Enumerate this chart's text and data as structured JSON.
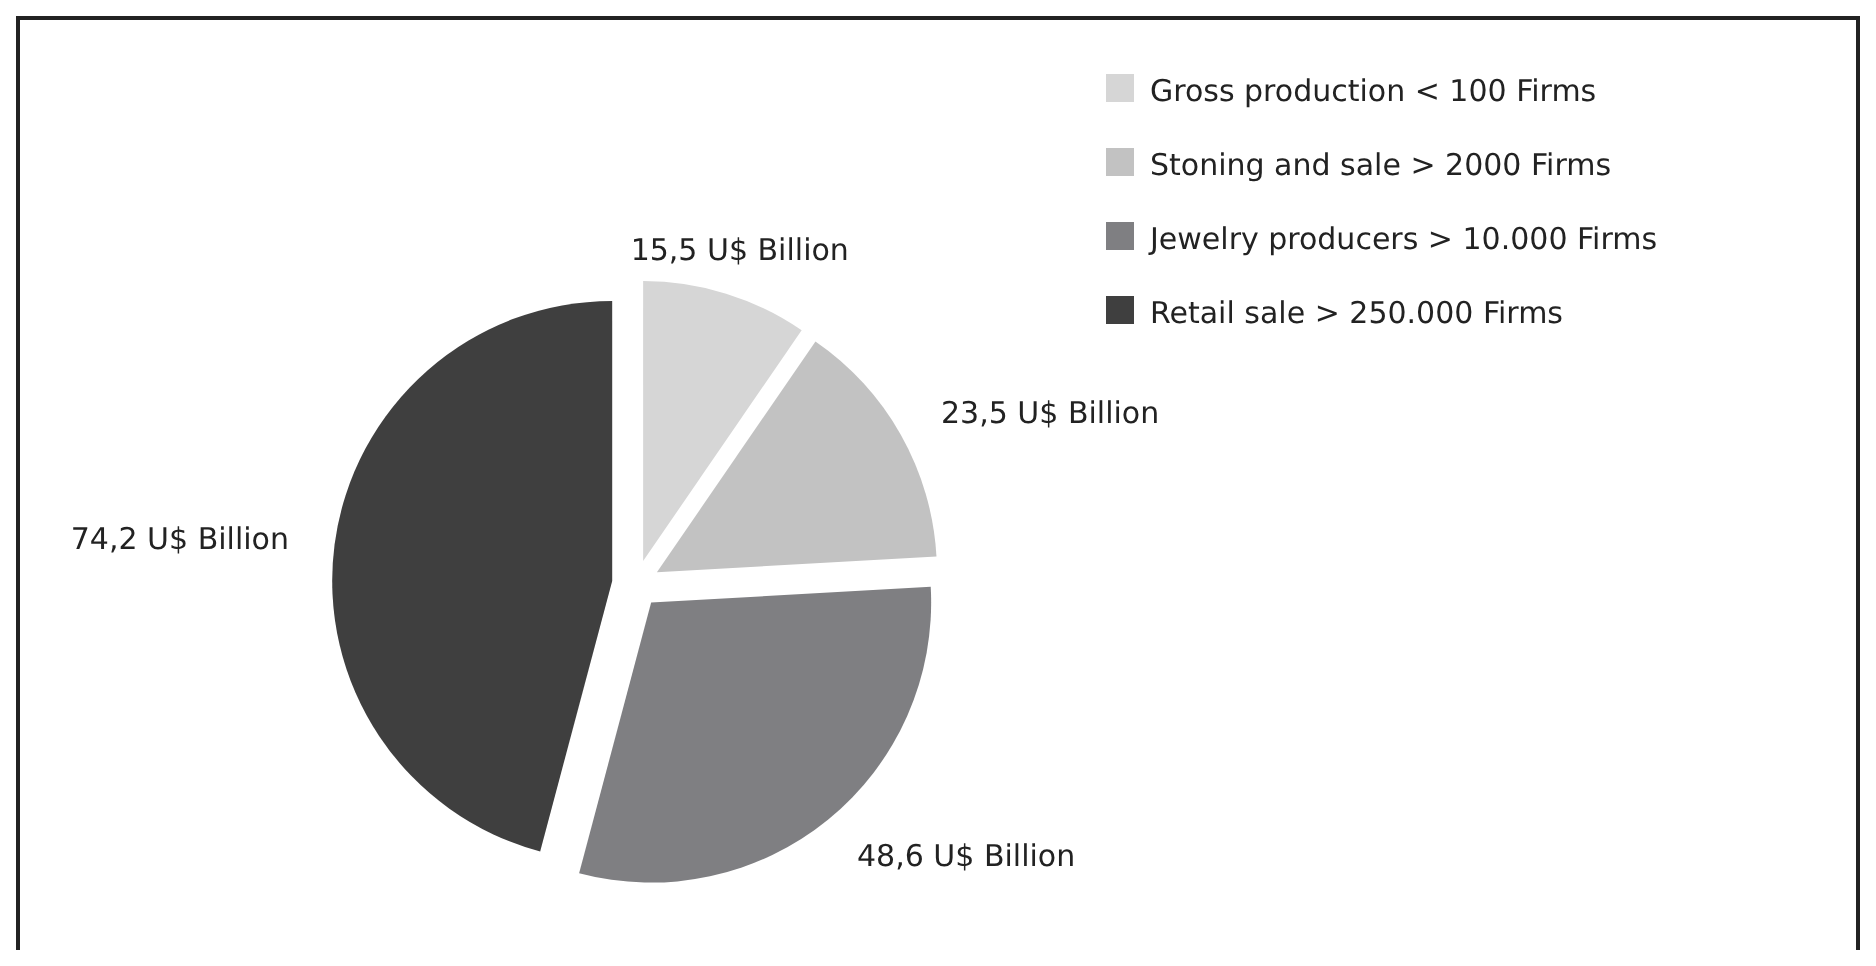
{
  "chart_data": {
    "type": "pie",
    "categories": [
      "Gross production < 100 Firms",
      "Stoning and sale > 2000 Firms",
      "Jewelry producers > 10.000 Firms",
      "Retail sale > 250.000 Firms"
    ],
    "values": [
      15.5,
      23.5,
      48.6,
      74.2
    ],
    "value_labels": [
      "15,5 U$ Billion",
      "23,5 U$ Billion",
      "48,6 U$ Billion",
      "74,2 U$ Billion"
    ],
    "colors": [
      "#d6d6d6",
      "#c2c2c2",
      "#7f7f82",
      "#3f3f3f"
    ],
    "legend": "top right"
  }
}
